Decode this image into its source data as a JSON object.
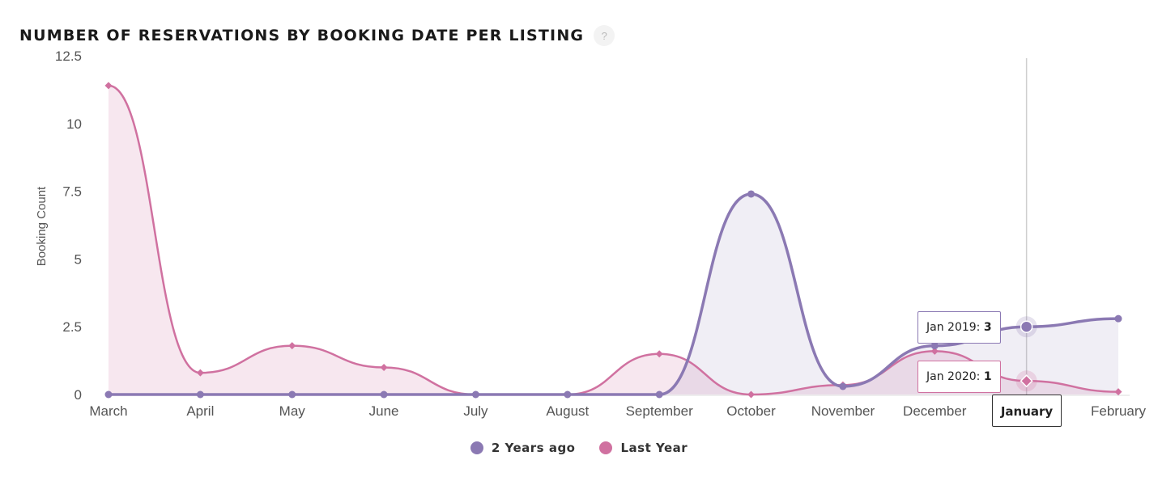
{
  "header": {
    "title": "NUMBER OF RESERVATIONS BY BOOKING DATE PER LISTING",
    "help_icon": "?"
  },
  "colors": {
    "two_years_ago": "#8b79b3",
    "last_year": "#d071a0",
    "crosshair": "#cfcfcf",
    "axis": "#dddddd"
  },
  "chart_data": {
    "type": "area",
    "title": "NUMBER OF RESERVATIONS BY BOOKING DATE PER LISTING",
    "xlabel": "",
    "ylabel": "Booking Count",
    "ylim": [
      0,
      12.5
    ],
    "yticks": [
      "0",
      "2.5",
      "5",
      "7.5",
      "10",
      "12.5"
    ],
    "categories": [
      "March",
      "April",
      "May",
      "June",
      "July",
      "August",
      "September",
      "October",
      "November",
      "December",
      "January",
      "February"
    ],
    "series": [
      {
        "name": "2 Years ago",
        "marker": "circle",
        "values": [
          0,
          0,
          0,
          0,
          0,
          0,
          0,
          7.4,
          0.3,
          1.8,
          2.5,
          2.8
        ]
      },
      {
        "name": "Last Year",
        "marker": "diamond",
        "values": [
          11.4,
          0.8,
          1.8,
          1.0,
          0,
          0,
          1.5,
          0,
          0.35,
          1.6,
          0.5,
          0.1
        ]
      }
    ],
    "highlight": {
      "category": "January",
      "tooltips": [
        {
          "label": "Jan 2019: ",
          "value": "3",
          "series": "2 Years ago"
        },
        {
          "label": "Jan 2020: ",
          "value": "1",
          "series": "Last Year"
        }
      ]
    },
    "legend": {
      "placement": "bottom-center"
    },
    "grid": false
  }
}
